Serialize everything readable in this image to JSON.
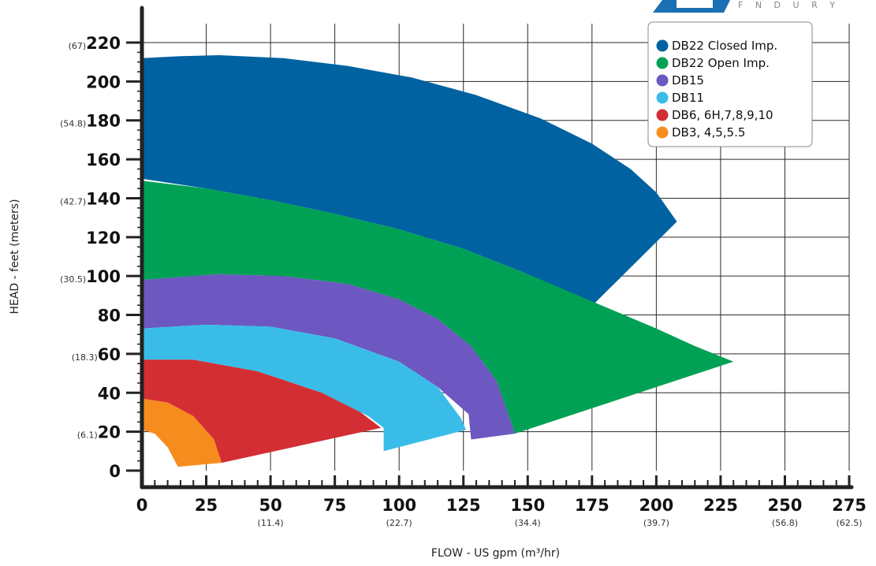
{
  "chart_data": {
    "type": "area",
    "title": "",
    "xlabel": "FLOW - US gpm (m³/hr)",
    "ylabel": "HEAD - feet (meters)",
    "xlim": [
      0,
      275
    ],
    "ylim": [
      0,
      220
    ],
    "grid": true,
    "legend_position": "top-right",
    "x_ticks": [
      0,
      25,
      50,
      75,
      100,
      125,
      150,
      175,
      200,
      225,
      250,
      275
    ],
    "x_tick_labels": [
      "0",
      "25",
      "50",
      "75",
      "100",
      "125",
      "150",
      "175",
      "200",
      "225",
      "250",
      "275"
    ],
    "x_sub_labels": [
      {
        "x": 50,
        "label": "(11.4)"
      },
      {
        "x": 100,
        "label": "(22.7)"
      },
      {
        "x": 150,
        "label": "(34.4)"
      },
      {
        "x": 200,
        "label": "(39.7)"
      },
      {
        "x": 250,
        "label": "(56.8)"
      },
      {
        "x": 275,
        "label": "(62.5)"
      }
    ],
    "y_ticks": [
      0,
      20,
      40,
      60,
      80,
      100,
      120,
      140,
      160,
      180,
      200,
      220
    ],
    "y_tick_labels": [
      "0",
      "20",
      "40",
      "60",
      "80",
      "100",
      "120",
      "140",
      "160",
      "180",
      "200",
      "220"
    ],
    "y_sub_labels": [
      {
        "y": 20,
        "label": "(6.1)"
      },
      {
        "y": 60,
        "label": "(18.3)"
      },
      {
        "y": 100,
        "label": "(30.5)"
      },
      {
        "y": 140,
        "label": "(42.7)"
      },
      {
        "y": 180,
        "label": "(54.8)"
      },
      {
        "y": 220,
        "label": "(67)"
      }
    ],
    "series": [
      {
        "name": "DB22 Closed Imp.",
        "color": "#0062a0",
        "upper": [
          [
            0,
            212
          ],
          [
            15,
            213
          ],
          [
            30,
            213.5
          ],
          [
            55,
            212
          ],
          [
            80,
            208
          ],
          [
            105,
            202
          ],
          [
            130,
            193
          ],
          [
            155,
            181
          ],
          [
            175,
            168
          ],
          [
            190,
            155
          ],
          [
            200,
            143
          ],
          [
            208,
            128
          ]
        ],
        "lower": [
          [
            0,
            150
          ],
          [
            25,
            145
          ],
          [
            50,
            139
          ],
          [
            75,
            132
          ],
          [
            100,
            124
          ],
          [
            125,
            114
          ],
          [
            150,
            101
          ],
          [
            165,
            92
          ],
          [
            176,
            86
          ]
        ]
      },
      {
        "name": "DB22 Open Imp.",
        "color": "#00a155",
        "upper": [
          [
            0,
            149
          ],
          [
            25,
            145
          ],
          [
            50,
            139
          ],
          [
            75,
            132
          ],
          [
            100,
            124
          ],
          [
            125,
            114
          ],
          [
            150,
            101
          ],
          [
            175,
            87
          ],
          [
            200,
            73
          ],
          [
            215,
            64
          ],
          [
            230,
            56
          ]
        ],
        "lower": [
          [
            0,
            98
          ],
          [
            30,
            101
          ],
          [
            55,
            100
          ],
          [
            80,
            96
          ],
          [
            100,
            88
          ],
          [
            115,
            78
          ],
          [
            128,
            64
          ],
          [
            138,
            46
          ],
          [
            145,
            19
          ]
        ]
      },
      {
        "name": "DB15",
        "color": "#6d57c1",
        "upper": [
          [
            0,
            98
          ],
          [
            30,
            101
          ],
          [
            55,
            100
          ],
          [
            80,
            96
          ],
          [
            100,
            88
          ],
          [
            115,
            78
          ],
          [
            128,
            64
          ],
          [
            138,
            46
          ],
          [
            145,
            19
          ]
        ],
        "lower": [
          [
            0,
            73
          ],
          [
            25,
            75
          ],
          [
            50,
            74
          ],
          [
            75,
            68
          ],
          [
            100,
            56
          ],
          [
            115,
            43
          ],
          [
            127,
            29
          ],
          [
            128,
            16
          ]
        ]
      },
      {
        "name": "DB11",
        "color": "#39bde8",
        "upper": [
          [
            0,
            73
          ],
          [
            25,
            75
          ],
          [
            50,
            74
          ],
          [
            75,
            68
          ],
          [
            100,
            56
          ],
          [
            115,
            43
          ],
          [
            124,
            27
          ],
          [
            126,
            21
          ]
        ],
        "lower": [
          [
            0,
            57
          ],
          [
            20,
            57
          ],
          [
            45,
            51
          ],
          [
            70,
            40
          ],
          [
            88,
            28
          ],
          [
            94,
            22
          ],
          [
            94,
            10
          ]
        ]
      },
      {
        "name": "DB6, 6H,7,8,9,10",
        "color": "#d32e33",
        "upper": [
          [
            0,
            57
          ],
          [
            20,
            57
          ],
          [
            45,
            51
          ],
          [
            70,
            40
          ],
          [
            85,
            30
          ],
          [
            93,
            22
          ]
        ],
        "lower": [
          [
            0,
            37
          ],
          [
            10,
            35
          ],
          [
            20,
            28
          ],
          [
            28,
            16
          ],
          [
            31,
            4
          ]
        ]
      },
      {
        "name": "DB3, 4,5,5.5",
        "color": "#f78c1e",
        "upper": [
          [
            0,
            37
          ],
          [
            10,
            35
          ],
          [
            20,
            28
          ],
          [
            28,
            16
          ],
          [
            31,
            4
          ]
        ],
        "lower": [
          [
            0,
            21
          ],
          [
            5,
            19
          ],
          [
            10,
            12
          ],
          [
            14,
            2
          ]
        ]
      }
    ]
  }
}
